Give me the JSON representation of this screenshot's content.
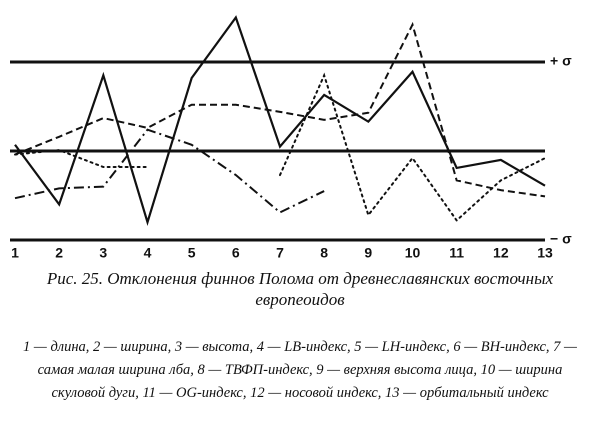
{
  "chart_data": {
    "type": "line",
    "categories": [
      "1",
      "2",
      "3",
      "4",
      "5",
      "6",
      "7",
      "8",
      "9",
      "10",
      "11",
      "12",
      "13"
    ],
    "ylim": [
      -1,
      1.5
    ],
    "yticks": [
      {
        "value": 1,
        "label": "+ σ"
      },
      {
        "value": -1,
        "label": "− σ"
      }
    ],
    "reference_lines": [
      1,
      0,
      -1
    ],
    "series": [
      {
        "color": "#111",
        "dash": "solid",
        "values": [
          0.07,
          -0.6,
          0.85,
          -0.8,
          0.82,
          1.5,
          0.05,
          0.63,
          0.33,
          0.89,
          -0.19,
          -0.1,
          -0.39
        ]
      },
      {
        "color": "#111",
        "dash": "dashed",
        "values": [
          -0.04,
          0.16,
          0.37,
          0.26,
          0.52,
          0.52,
          0.44,
          0.35,
          0.43,
          1.42,
          -0.33,
          -0.44,
          -0.51
        ]
      },
      {
        "color": "#111",
        "dash": "dotted",
        "values": [
          -0.04,
          0.01,
          -0.18,
          -0.18,
          null,
          null,
          -0.27,
          0.85,
          -0.72,
          -0.08,
          -0.78,
          -0.33,
          -0.08
        ]
      },
      {
        "color": "#111",
        "dash": "dashdot",
        "values": [
          -0.53,
          -0.42,
          -0.4,
          0.24,
          0.07,
          -0.27,
          -0.69,
          -0.45,
          null,
          null,
          null,
          null,
          null
        ]
      }
    ],
    "caption": "Рис. 25. Отклонения финнов Полома от древнеславянских восточных европеоидов",
    "note": "1 — длина, 2 — ширина, 3 — высота, 4 — LB-индекс, 5 — LH-индекс, 6 — BH-индекс, 7 — самая малая ширина лба, 8 — ТВФП-индекс, 9 — верхняя высота лица, 10 — ширина скуловой дуги, 11 — OG-индекс, 12 — носовой индекс, 13 — орбитальный индекс"
  }
}
